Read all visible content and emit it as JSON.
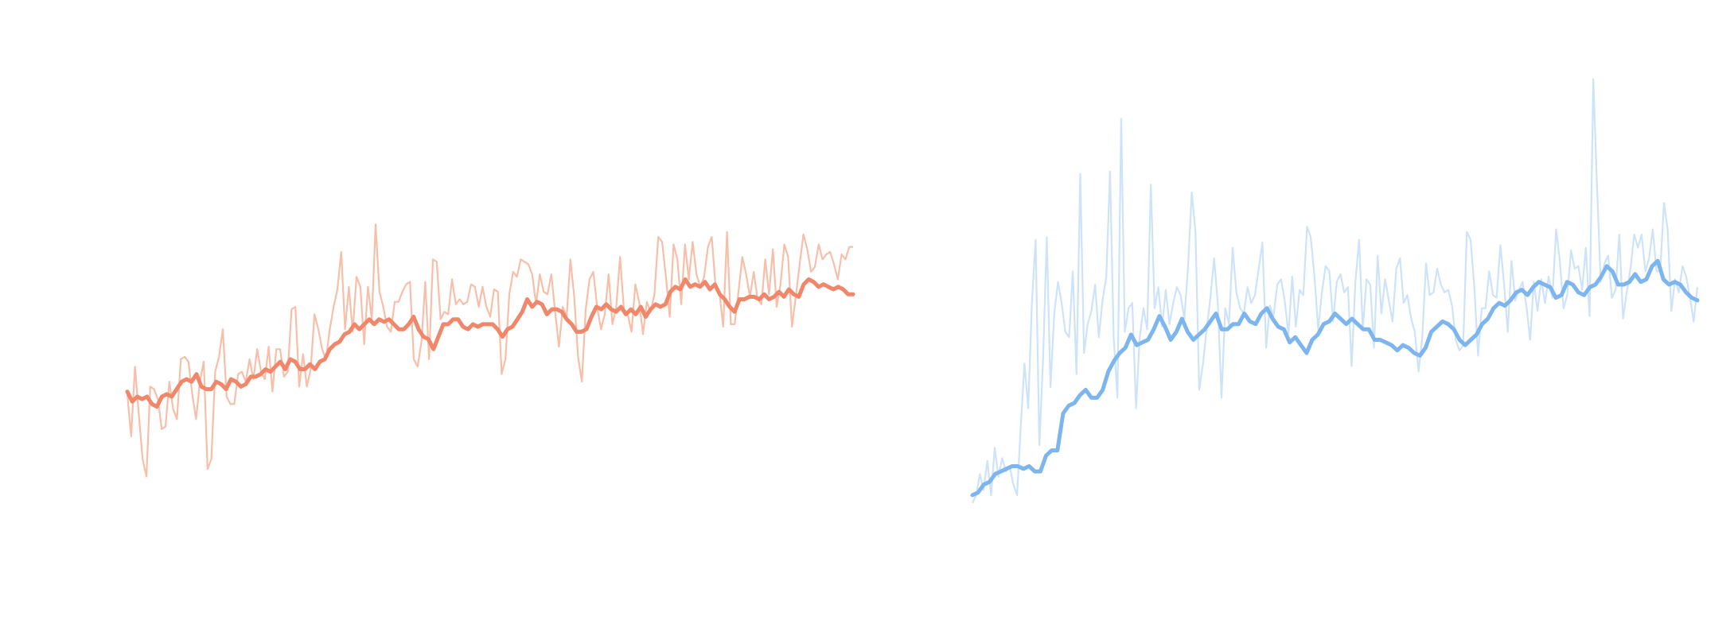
{
  "chart_data": [
    {
      "type": "line",
      "title": "",
      "xlabel": "",
      "ylabel": "",
      "grid": false,
      "axes_visible": false,
      "colors": {
        "raw": "#f4a98c",
        "smoothed": "#f0876a"
      },
      "raw_y": [
        2.55,
        1.7,
        3.1,
        2.15,
        1.25,
        0.9,
        2.7,
        2.65,
        2.45,
        1.85,
        1.9,
        2.8,
        2.25,
        2.05,
        3.25,
        3.3,
        3.2,
        2.55,
        2.05,
        2.8,
        3.2,
        1.05,
        1.25,
        3.0,
        3.3,
        3.85,
        2.5,
        2.35,
        2.35,
        2.95,
        3.0,
        2.8,
        3.25,
        2.85,
        3.45,
        3.0,
        2.85,
        3.5,
        2.6,
        3.45,
        3.45,
        2.9,
        3.0,
        4.25,
        4.3,
        2.7,
        3.35,
        2.7,
        3.05,
        4.15,
        3.85,
        3.45,
        3.25,
        3.85,
        4.3,
        4.65,
        5.4,
        3.85,
        4.7,
        3.8,
        4.9,
        4.7,
        3.55,
        4.7,
        4.05,
        5.95,
        4.6,
        4.3,
        3.9,
        3.8,
        4.4,
        4.4,
        4.6,
        4.75,
        4.8,
        3.25,
        3.1,
        3.6,
        4.8,
        3.25,
        5.25,
        5.2,
        4.05,
        4.2,
        4.15,
        4.85,
        4.35,
        4.45,
        4.35,
        4.4,
        4.75,
        4.7,
        4.3,
        4.7,
        4.3,
        4.1,
        4.65,
        4.6,
        2.95,
        3.25,
        4.55,
        5.0,
        4.9,
        5.25,
        5.2,
        5.15,
        4.95,
        4.35,
        4.95,
        4.6,
        4.55,
        4.95,
        4.2,
        3.5,
        4.3,
        4.1,
        5.25,
        4.5,
        3.3,
        2.8,
        4.25,
        4.85,
        5.0,
        4.3,
        3.85,
        4.15,
        4.95,
        3.95,
        4.3,
        5.3,
        4.25,
        4.15,
        3.8,
        4.75,
        4.4,
        3.75,
        4.4,
        4.2,
        4.55,
        5.7,
        5.6,
        4.9,
        4.1,
        5.55,
        5.25,
        4.35,
        5.55,
        4.85,
        5.6,
        4.95,
        4.7,
        4.9,
        5.5,
        5.7,
        4.7,
        4.6,
        3.9,
        5.8,
        3.95,
        3.95,
        4.6,
        5.3,
        4.95,
        4.5,
        5.0,
        4.45,
        4.35,
        5.25,
        4.55,
        5.45,
        4.3,
        4.75,
        5.55,
        5.3,
        3.9,
        4.5,
        5.15,
        5.75,
        5.45,
        5.0,
        5.1,
        5.55,
        5.25,
        5.35,
        5.4,
        5.15,
        4.85,
        5.35,
        5.25,
        5.5,
        5.5
      ],
      "smoothed_y": [
        2.6,
        2.4,
        2.5,
        2.45,
        2.5,
        2.35,
        2.3,
        2.5,
        2.55,
        2.5,
        2.65,
        2.8,
        2.85,
        2.8,
        2.95,
        2.7,
        2.65,
        2.65,
        2.8,
        2.75,
        2.65,
        2.85,
        2.8,
        2.7,
        2.75,
        2.9,
        2.9,
        2.95,
        3.05,
        3.0,
        3.1,
        3.2,
        3.05,
        3.25,
        3.2,
        3.05,
        3.05,
        3.15,
        3.05,
        3.2,
        3.25,
        3.45,
        3.55,
        3.6,
        3.75,
        3.8,
        3.95,
        3.85,
        3.95,
        4.05,
        3.95,
        4.05,
        4.0,
        4.05,
        3.95,
        3.85,
        3.85,
        3.95,
        4.1,
        3.85,
        3.7,
        3.65,
        3.45,
        3.7,
        3.95,
        3.95,
        4.05,
        4.05,
        3.9,
        3.85,
        3.95,
        3.9,
        3.95,
        3.95,
        3.95,
        3.85,
        3.7,
        3.85,
        3.9,
        4.05,
        4.2,
        4.45,
        4.3,
        4.4,
        4.35,
        4.15,
        4.25,
        4.25,
        4.2,
        4.05,
        3.95,
        3.8,
        3.8,
        3.85,
        4.1,
        4.3,
        4.25,
        4.35,
        4.25,
        4.2,
        4.3,
        4.15,
        4.25,
        4.15,
        4.3,
        4.1,
        4.25,
        4.35,
        4.3,
        4.35,
        4.6,
        4.7,
        4.65,
        4.85,
        4.7,
        4.75,
        4.7,
        4.8,
        4.65,
        4.75,
        4.55,
        4.45,
        4.3,
        4.2,
        4.45,
        4.45,
        4.5,
        4.5,
        4.45,
        4.55,
        4.45,
        4.5,
        4.6,
        4.5,
        4.65,
        4.55,
        4.5,
        4.75,
        4.85,
        4.8,
        4.7,
        4.75,
        4.7,
        4.65,
        4.7,
        4.65,
        4.55,
        4.55
      ],
      "color": "#f0876a"
    },
    {
      "type": "line",
      "title": "",
      "xlabel": "",
      "ylabel": "",
      "grid": false,
      "axes_visible": false,
      "colors": {
        "raw": "#bcd9f7",
        "smoothed": "#7db5ef"
      },
      "raw_y": [
        0.35,
        0.5,
        0.9,
        0.6,
        1.15,
        0.5,
        1.4,
        0.85,
        1.2,
        0.95,
        1.05,
        0.7,
        0.5,
        1.8,
        3.0,
        2.15,
        4.15,
        5.35,
        1.45,
        3.1,
        5.4,
        2.55,
        3.95,
        4.55,
        4.15,
        3.6,
        3.5,
        4.75,
        2.8,
        6.6,
        3.2,
        3.75,
        4.0,
        4.5,
        3.5,
        4.2,
        4.65,
        6.65,
        3.5,
        2.35,
        7.65,
        3.6,
        4.05,
        4.15,
        2.15,
        3.5,
        4.05,
        3.65,
        6.4,
        4.05,
        4.45,
        3.7,
        4.4,
        3.75,
        4.15,
        4.45,
        4.3,
        3.85,
        4.85,
        6.25,
        5.5,
        2.5,
        3.0,
        3.65,
        4.25,
        5.0,
        4.15,
        2.35,
        4.05,
        3.75,
        5.2,
        4.35,
        4.05,
        3.95,
        4.45,
        4.15,
        4.3,
        4.8,
        5.3,
        3.3,
        4.1,
        3.9,
        4.5,
        4.6,
        4.2,
        3.55,
        4.65,
        3.7,
        4.4,
        4.3,
        5.6,
        5.4,
        4.65,
        3.65,
        4.35,
        4.85,
        4.75,
        3.8,
        4.55,
        4.7,
        4.35,
        4.45,
        2.95,
        4.55,
        5.35,
        3.65,
        4.6,
        4.5,
        3.3,
        5.05,
        3.95,
        4.6,
        4.2,
        3.8,
        4.8,
        5.0,
        4.15,
        4.3,
        3.85,
        3.6,
        2.85,
        3.5,
        4.9,
        4.3,
        4.35,
        4.8,
        4.5,
        4.35,
        4.4,
        4.1,
        3.45,
        3.25,
        3.35,
        5.5,
        5.35,
        4.45,
        3.15,
        4.05,
        4.05,
        4.75,
        4.3,
        4.25,
        5.25,
        4.5,
        3.6,
        4.95,
        4.2,
        4.4,
        4.55,
        4.1,
        3.45,
        4.55,
        4.0,
        4.6,
        4.15,
        4.65,
        4.25,
        5.55,
        4.95,
        4.05,
        4.3,
        5.15,
        4.8,
        4.85,
        4.4,
        5.2,
        3.9,
        8.4,
        6.35,
        4.55,
        4.9,
        5.05,
        4.25,
        4.4,
        5.45,
        3.85,
        4.35,
        4.8,
        5.45,
        5.2,
        5.45,
        4.75,
        5.0,
        5.55,
        4.75,
        4.75,
        6.05,
        5.55,
        4.0,
        4.6,
        4.35,
        4.85,
        4.65,
        4.25,
        3.8,
        4.45
      ],
      "smoothed_y": [
        0.5,
        0.55,
        0.7,
        0.75,
        0.9,
        0.95,
        1.0,
        1.05,
        1.05,
        1.0,
        1.05,
        0.95,
        0.95,
        1.25,
        1.35,
        1.35,
        2.05,
        2.2,
        2.25,
        2.4,
        2.5,
        2.35,
        2.35,
        2.5,
        2.85,
        3.05,
        3.2,
        3.3,
        3.55,
        3.35,
        3.4,
        3.45,
        3.65,
        3.9,
        3.7,
        3.45,
        3.6,
        3.85,
        3.6,
        3.45,
        3.55,
        3.65,
        3.8,
        3.95,
        3.65,
        3.65,
        3.75,
        3.75,
        3.95,
        3.8,
        3.75,
        3.95,
        4.05,
        3.85,
        3.7,
        3.65,
        3.4,
        3.5,
        3.35,
        3.2,
        3.45,
        3.55,
        3.75,
        3.8,
        3.95,
        3.85,
        3.75,
        3.85,
        3.75,
        3.65,
        3.65,
        3.45,
        3.45,
        3.4,
        3.35,
        3.25,
        3.35,
        3.3,
        3.2,
        3.15,
        3.3,
        3.6,
        3.7,
        3.8,
        3.75,
        3.65,
        3.45,
        3.35,
        3.45,
        3.55,
        3.75,
        3.85,
        4.05,
        4.15,
        4.1,
        4.2,
        4.35,
        4.4,
        4.3,
        4.45,
        4.55,
        4.5,
        4.45,
        4.25,
        4.3,
        4.55,
        4.5,
        4.35,
        4.3,
        4.45,
        4.5,
        4.65,
        4.85,
        4.75,
        4.5,
        4.5,
        4.55,
        4.7,
        4.55,
        4.6,
        4.85,
        4.95,
        4.6,
        4.5,
        4.55,
        4.5,
        4.35,
        4.25,
        4.2
      ],
      "color": "#7db5ef"
    }
  ]
}
